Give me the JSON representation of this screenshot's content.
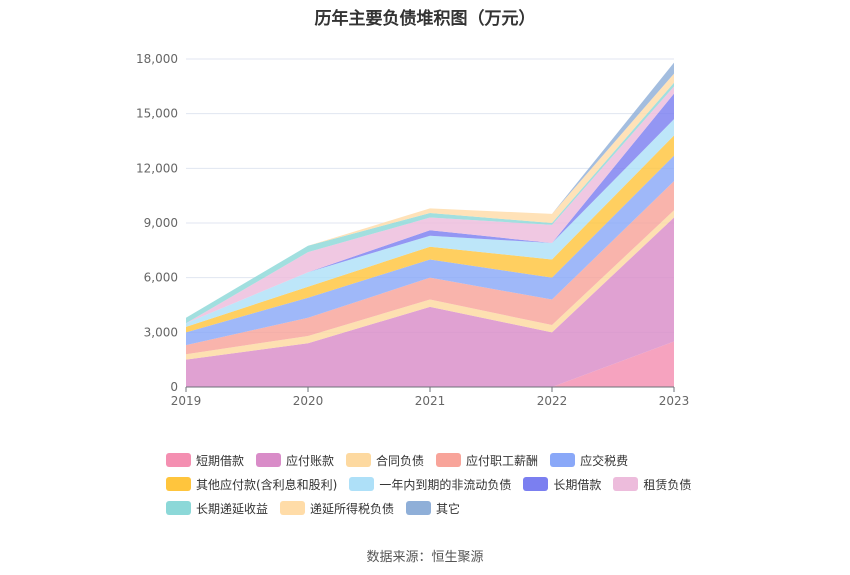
{
  "title": "历年主要负债堆积图（万元）",
  "source": "数据来源：恒生聚源",
  "chart_data": {
    "type": "area",
    "stacked": true,
    "x": [
      "2019",
      "2020",
      "2021",
      "2022",
      "2023"
    ],
    "ylim": [
      0,
      18000
    ],
    "yticks": [
      0,
      3000,
      6000,
      9000,
      12000,
      15000,
      18000
    ],
    "ytick_labels": [
      "0",
      "3,000",
      "6,000",
      "9,000",
      "12,000",
      "15,000",
      "18,000"
    ],
    "grid": true,
    "legend_position": "bottom",
    "series": [
      {
        "name": "短期借款",
        "color": "#f48fb1",
        "values": [
          0,
          0,
          0,
          0,
          2500
        ]
      },
      {
        "name": "应付账款",
        "color": "#d98cc8",
        "values": [
          1500,
          2400,
          4400,
          3000,
          6800
        ]
      },
      {
        "name": "合同负债",
        "color": "#fdd9a0",
        "values": [
          300,
          400,
          400,
          400,
          400
        ]
      },
      {
        "name": "应付职工薪酬",
        "color": "#f8a49a",
        "values": [
          500,
          1000,
          1200,
          1400,
          1600
        ]
      },
      {
        "name": "应交税费",
        "color": "#8aa8f8",
        "values": [
          700,
          1100,
          1000,
          1200,
          1400
        ]
      },
      {
        "name": "其他应付款(含利息和股利)",
        "color": "#ffc53d",
        "values": [
          300,
          600,
          700,
          1000,
          1100
        ]
      },
      {
        "name": "一年内到期的非流动负债",
        "color": "#aee0f8",
        "values": [
          200,
          800,
          600,
          900,
          900
        ]
      },
      {
        "name": "长期借款",
        "color": "#7b7ff0",
        "values": [
          0,
          0,
          300,
          0,
          1400
        ]
      },
      {
        "name": "租赁负债",
        "color": "#edbcdc",
        "values": [
          0,
          1100,
          700,
          1000,
          400
        ]
      },
      {
        "name": "长期递延收益",
        "color": "#8cd8d8",
        "values": [
          300,
          350,
          250,
          100,
          200
        ]
      },
      {
        "name": "递延所得税负债",
        "color": "#ffdca8",
        "values": [
          0,
          0,
          250,
          500,
          500
        ]
      },
      {
        "name": "其它",
        "color": "#8fafd8",
        "values": [
          0,
          0,
          0,
          0,
          600
        ]
      }
    ]
  }
}
